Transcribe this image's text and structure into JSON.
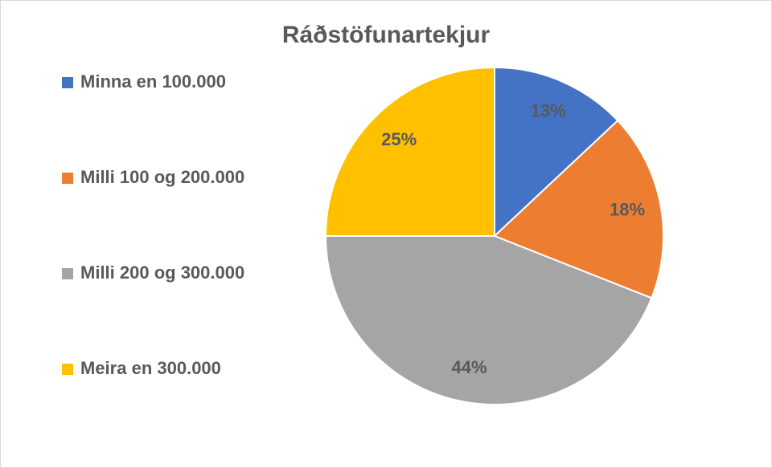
{
  "chart_data": {
    "type": "pie",
    "title": "Ráðstöfunartekjur",
    "categories": [
      "Minna en 100.000",
      "Milli 100 og 200.000",
      "Milli 200 og 300.000",
      "Meira en 300.000"
    ],
    "values": [
      13,
      18,
      44,
      25
    ],
    "value_labels": [
      "13%",
      "18%",
      "44%",
      "25%"
    ],
    "colors": [
      "#4472c4",
      "#ed7d31",
      "#a5a5a5",
      "#ffc000"
    ],
    "legend": "left"
  }
}
